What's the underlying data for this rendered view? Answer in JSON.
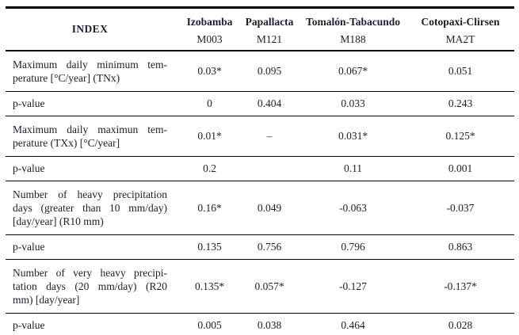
{
  "table": {
    "index_header": "INDEX",
    "stations": [
      {
        "name": "Izobamba",
        "code": "M003"
      },
      {
        "name": "Papallacta",
        "code": "M121"
      },
      {
        "name": "Tomalón-Tabacundo",
        "code": "M188"
      },
      {
        "name": "Cotopaxi-Clirsen",
        "code": "MA2T"
      }
    ],
    "rows": [
      {
        "kind": "index",
        "label": "Maximum daily minimum temperature [°C/year] (TNx)",
        "label_lines": [
          "Maximum daily minimum tem-",
          "perature [°C/year] (TNx)"
        ],
        "values": [
          "0.03*",
          "0.095",
          "0.067*",
          "0.051"
        ]
      },
      {
        "kind": "pvalue",
        "label": "p-value",
        "label_lines": [
          "p-value"
        ],
        "values": [
          "0",
          "0.404",
          "0.033",
          "0.243"
        ]
      },
      {
        "kind": "index",
        "label": "Maximum daily maximun temperature (TXx) [°C/year]",
        "label_lines": [
          "Maximum daily maximun tem-",
          "perature (TXx) [°C/year]"
        ],
        "values": [
          "0.01*",
          "–",
          "0.031*",
          "0.125*"
        ]
      },
      {
        "kind": "pvalue",
        "label": "p-value",
        "label_lines": [
          "p-value"
        ],
        "values": [
          "0.2",
          "",
          "0.11",
          "0.001"
        ]
      },
      {
        "kind": "index",
        "label": "Number of heavy precipitation days (greater than 10 mm/day) [day/year] (R10 mm)",
        "label_lines": [
          "Number of heavy precipitation",
          "days (greater than 10 mm/day)",
          "[day/year] (R10 mm)"
        ],
        "values": [
          "0.16*",
          "0.049",
          "-0.063",
          "-0.037"
        ]
      },
      {
        "kind": "pvalue",
        "label": "p-value",
        "label_lines": [
          "p-value"
        ],
        "values": [
          "0.135",
          "0.756",
          "0.796",
          "0.863"
        ]
      },
      {
        "kind": "index",
        "label": "Number of very heavy precipitation days (20 mm/day) (R20 mm) [day/year]",
        "label_lines": [
          "Number of very heavy precipi-",
          "tation days (20 mm/day) (R20",
          "mm) [day/year]"
        ],
        "values": [
          "0.135*",
          "0.057*",
          "-0.127",
          "-0.137*"
        ]
      },
      {
        "kind": "pvalue",
        "label": "p-value",
        "label_lines": [
          "p-value"
        ],
        "values": [
          "0.005",
          "0.038",
          "0.464",
          "0.028"
        ]
      }
    ],
    "colors": {
      "text": "#1d1d2e",
      "rule": "#000000",
      "background": "#ffffff"
    }
  }
}
